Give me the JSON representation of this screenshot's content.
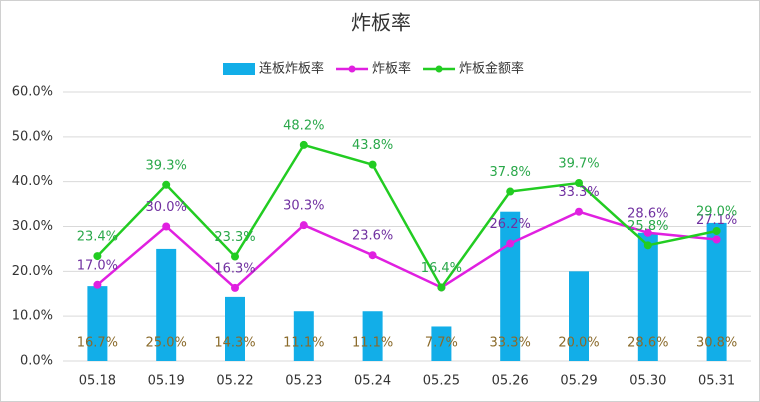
{
  "chart_data": {
    "type": "bar",
    "title": "炸板率",
    "categories": [
      "05.18",
      "05.19",
      "05.22",
      "05.23",
      "05.24",
      "05.25",
      "05.26",
      "05.29",
      "05.30",
      "05.31"
    ],
    "series": [
      {
        "name": "连板炸板率",
        "type": "bar",
        "color": "#12aee8",
        "label_color": "#8a6a2a",
        "values": [
          16.7,
          25.0,
          14.3,
          11.1,
          11.1,
          7.7,
          33.3,
          20.0,
          28.6,
          30.8
        ],
        "value_labels": [
          "16.7%",
          "25.0%",
          "14.3%",
          "11.1%",
          "11.1%",
          "7.7%",
          "33.3%",
          "20.0%",
          "28.6%",
          "30.8%"
        ]
      },
      {
        "name": "炸板率",
        "type": "line",
        "color": "#e020e0",
        "label_color": "#7030a0",
        "values": [
          17.0,
          30.0,
          16.3,
          30.3,
          23.6,
          16.4,
          26.2,
          33.3,
          28.6,
          27.1
        ],
        "value_labels": [
          "17.0%",
          "30.0%",
          "16.3%",
          "30.3%",
          "23.6%",
          null,
          "26.2%",
          "33.3%",
          "28.6%",
          "27.1%"
        ]
      },
      {
        "name": "炸板金额率",
        "type": "line",
        "color": "#22cc22",
        "label_color": "#2aa84a",
        "values": [
          23.4,
          39.3,
          23.3,
          48.2,
          43.8,
          16.4,
          37.8,
          39.7,
          25.8,
          29.0
        ],
        "value_labels": [
          "23.4%",
          "39.3%",
          "23.3%",
          "48.2%",
          "43.8%",
          "16.4%",
          "37.8%",
          "39.7%",
          "25.8%",
          "29.0%"
        ]
      }
    ],
    "ylim": [
      0,
      60
    ],
    "yticks": [
      {
        "value": 0,
        "label": "0.0%"
      },
      {
        "value": 10,
        "label": "10.0%"
      },
      {
        "value": 20,
        "label": "20.0%"
      },
      {
        "value": 30,
        "label": "30.0%"
      },
      {
        "value": 40,
        "label": "40.0%"
      },
      {
        "value": 50,
        "label": "50.0%"
      },
      {
        "value": 60,
        "label": "60.0%"
      }
    ],
    "grid": true,
    "legend": "top"
  }
}
